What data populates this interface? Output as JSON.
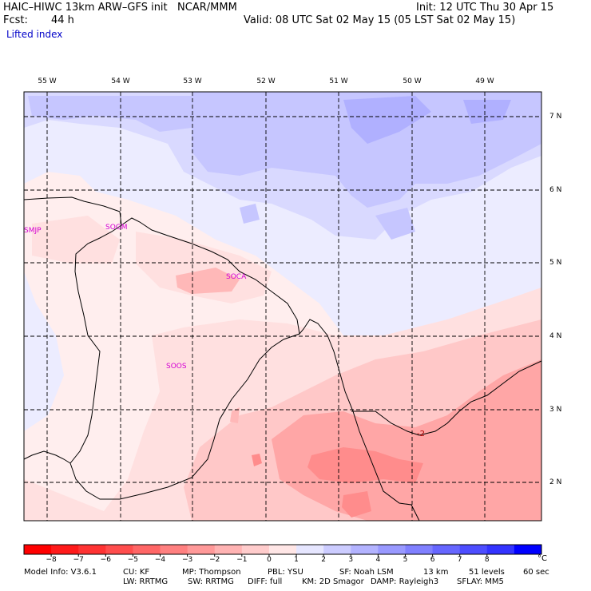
{
  "header": {
    "title": "HAIC–HIWC 13km ARW–GFS init   NCAR/MMM",
    "fcst_label": "Fcst:",
    "fcst_value": "44 h",
    "init": "Init: 12 UTC Thu 30 Apr 15",
    "valid": "Valid: 08 UTC Sat 02 May 15 (05 LST Sat 02 May 15)",
    "field": "Lifted index"
  },
  "map": {
    "lon_labels": [
      "55 W",
      "54 W",
      "53 W",
      "52 W",
      "51 W",
      "50 W",
      "49 W"
    ],
    "lat_labels": [
      "7 N",
      "6 N",
      "5 N",
      "4 N",
      "3 N",
      "2 N"
    ],
    "stations": [
      "SMJP",
      "SOGM",
      "SOCA",
      "SOOS"
    ],
    "contour_label": "-2"
  },
  "colorbar": {
    "unit": "°C",
    "ticks": [
      "−8",
      "−7",
      "−6",
      "−5",
      "−4",
      "−3",
      "−2",
      "−1",
      "0",
      "1",
      "2",
      "3",
      "4",
      "5",
      "6",
      "7",
      "8"
    ],
    "colors": [
      "#ff0000",
      "#ff1a1a",
      "#ff3333",
      "#ff4d4d",
      "#ff6666",
      "#ff8080",
      "#ff9999",
      "#ffb3b3",
      "#ffcccc",
      "#ffe6e6",
      "#e6e6ff",
      "#ccccff",
      "#b3b3ff",
      "#9999ff",
      "#8080ff",
      "#6666ff",
      "#4d4dff",
      "#3333ff",
      "#0000ff"
    ]
  },
  "footer": {
    "model_info": "Model Info: V3.6.1",
    "cu": "CU: KF",
    "lw": "LW: RRTMG",
    "mp": "MP: Thompson",
    "sw": "SW: RRTMG",
    "pbl": "PBL: YSU",
    "diff": "DIFF: full",
    "sf": "SF: Noah LSM",
    "km": "KM: 2D Smagor",
    "res": "13 km",
    "levels": "51 levels",
    "sec": "60 sec",
    "damp": "DAMP: Rayleigh3",
    "sflay": "SFLAY: MM5"
  }
}
